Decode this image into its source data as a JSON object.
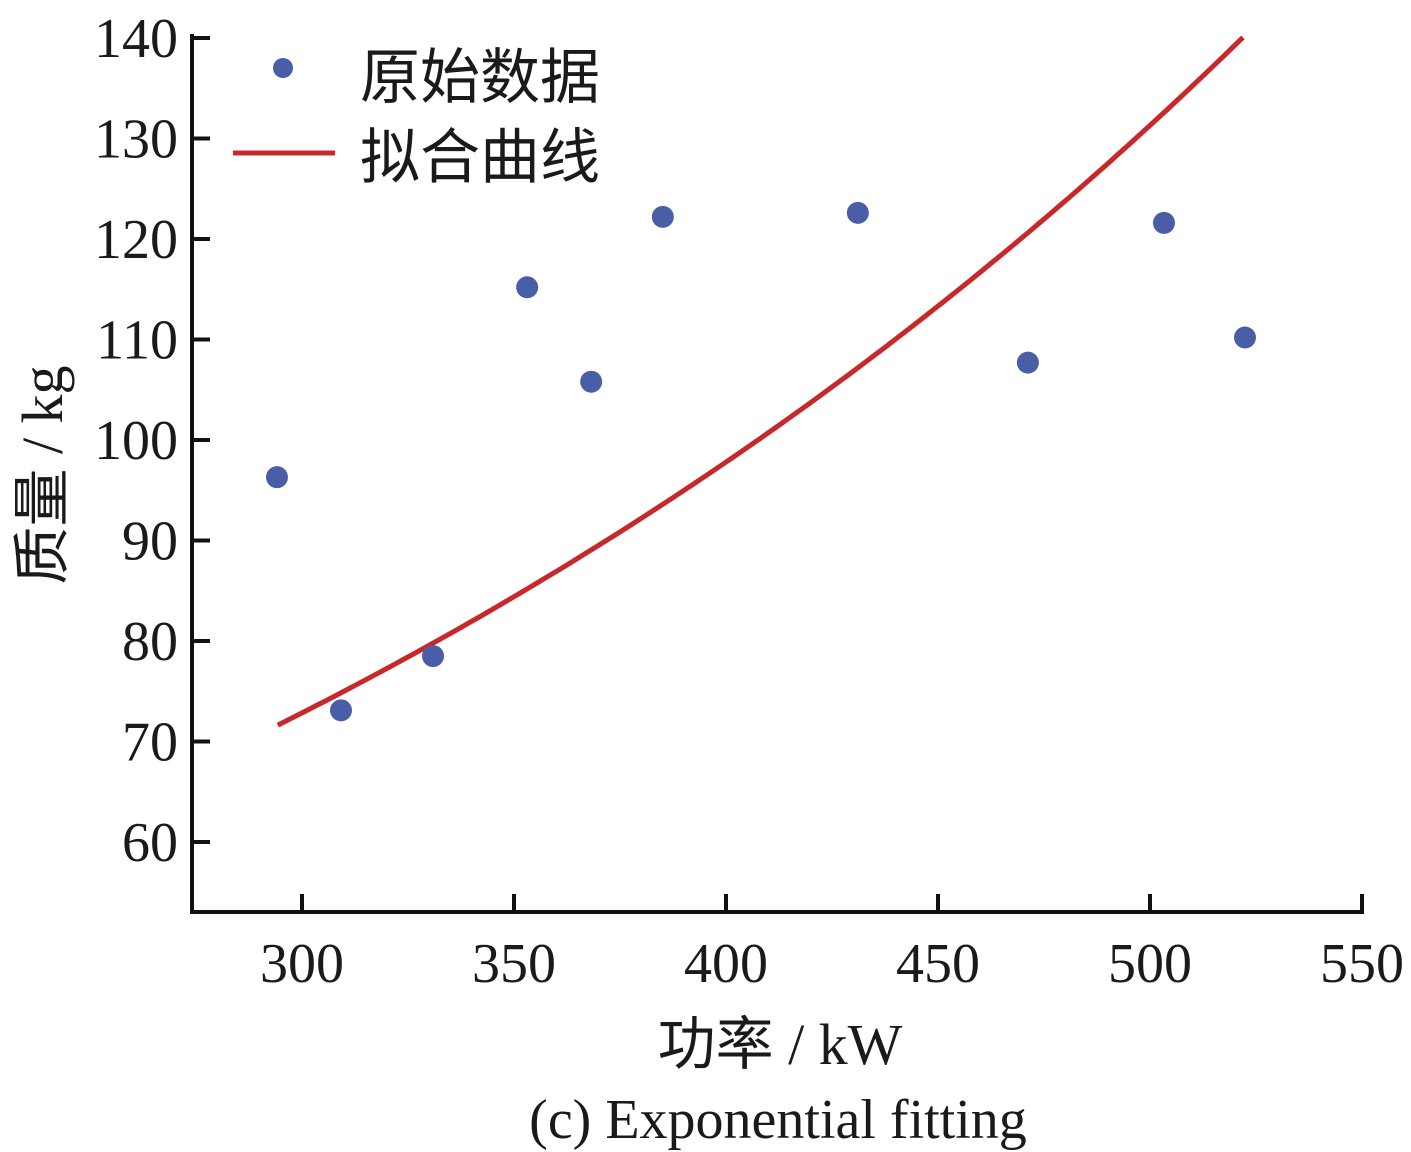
{
  "chart_data": {
    "type": "scatter",
    "caption": "(c) Exponential fitting",
    "xlabel": "功率 / kW",
    "ylabel": "质量 / kg",
    "xlim": [
      274,
      550
    ],
    "ylim": [
      53,
      140
    ],
    "xticks": [
      300,
      350,
      400,
      450,
      500,
      550
    ],
    "yticks": [
      60,
      70,
      80,
      90,
      100,
      110,
      120,
      130,
      140
    ],
    "grid": false,
    "legend_position": "top-left",
    "series": [
      {
        "name": "原始数据",
        "kind": "scatter",
        "color": "#4a5ea8",
        "points": [
          [
            294.1,
            96.3
          ],
          [
            309.2,
            73.1
          ],
          [
            330.9,
            78.5
          ],
          [
            353.1,
            115.2
          ],
          [
            368.2,
            105.8
          ],
          [
            385.1,
            122.2
          ],
          [
            431.1,
            122.6
          ],
          [
            471.2,
            107.7
          ],
          [
            503.3,
            121.6
          ],
          [
            522.4,
            110.2
          ]
        ]
      },
      {
        "name": "拟合曲线",
        "kind": "line",
        "color": "#c8282a",
        "model": "exponential",
        "a": 30.1,
        "b": 0.002946,
        "x_range": [
          294.3,
          521.9
        ]
      }
    ]
  }
}
